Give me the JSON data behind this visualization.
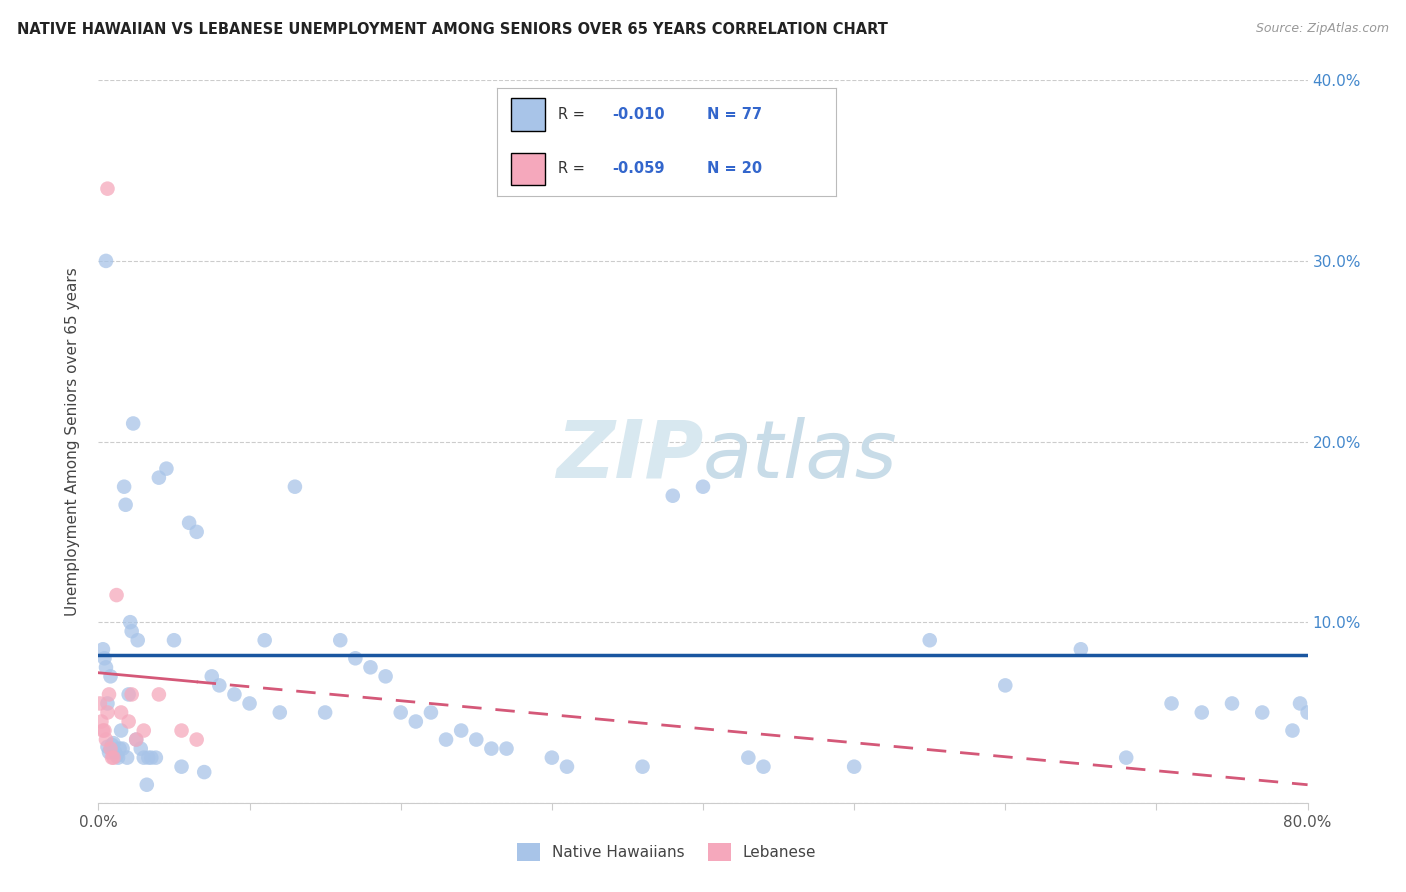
{
  "title": "NATIVE HAWAIIAN VS LEBANESE UNEMPLOYMENT AMONG SENIORS OVER 65 YEARS CORRELATION CHART",
  "source": "Source: ZipAtlas.com",
  "ylabel": "Unemployment Among Seniors over 65 years",
  "xlim": [
    0,
    0.8
  ],
  "ylim": [
    0,
    0.4
  ],
  "xtick_positions": [
    0.0,
    0.1,
    0.2,
    0.3,
    0.4,
    0.5,
    0.6,
    0.7,
    0.8
  ],
  "ytick_positions": [
    0.0,
    0.1,
    0.2,
    0.3,
    0.4
  ],
  "xtick_labels": [
    "0.0%",
    "",
    "",
    "",
    "",
    "",
    "",
    "",
    "80.0%"
  ],
  "ytick_labels_right": [
    "",
    "10.0%",
    "20.0%",
    "30.0%",
    "40.0%"
  ],
  "legend_r1": "R = -0.010",
  "legend_n1": "N = 77",
  "legend_r2": "R = -0.059",
  "legend_n2": "N = 20",
  "blue_color": "#a8c4e8",
  "pink_color": "#f5a8bc",
  "trend_blue_color": "#1a56a0",
  "trend_pink_color": "#d45878",
  "r_value_color": "#3366cc",
  "title_color": "#222222",
  "source_color": "#999999",
  "ylabel_color": "#444444",
  "tick_right_color": "#4488cc",
  "watermark_color": "#d8e8f0",
  "nh_x": [
    0.003,
    0.004,
    0.005,
    0.005,
    0.006,
    0.006,
    0.007,
    0.008,
    0.009,
    0.01,
    0.011,
    0.012,
    0.013,
    0.014,
    0.015,
    0.016,
    0.017,
    0.018,
    0.019,
    0.02,
    0.021,
    0.022,
    0.023,
    0.025,
    0.026,
    0.028,
    0.03,
    0.032,
    0.033,
    0.035,
    0.038,
    0.04,
    0.045,
    0.05,
    0.055,
    0.06,
    0.065,
    0.07,
    0.075,
    0.08,
    0.09,
    0.1,
    0.11,
    0.12,
    0.13,
    0.15,
    0.16,
    0.17,
    0.18,
    0.19,
    0.2,
    0.21,
    0.22,
    0.23,
    0.24,
    0.25,
    0.26,
    0.27,
    0.3,
    0.31,
    0.36,
    0.38,
    0.4,
    0.43,
    0.44,
    0.5,
    0.55,
    0.6,
    0.65,
    0.68,
    0.71,
    0.73,
    0.75,
    0.77,
    0.79,
    0.795,
    0.8
  ],
  "nh_y": [
    0.085,
    0.08,
    0.075,
    0.3,
    0.055,
    0.031,
    0.028,
    0.07,
    0.032,
    0.033,
    0.028,
    0.026,
    0.025,
    0.03,
    0.04,
    0.03,
    0.175,
    0.165,
    0.025,
    0.06,
    0.1,
    0.095,
    0.21,
    0.035,
    0.09,
    0.03,
    0.025,
    0.01,
    0.025,
    0.025,
    0.025,
    0.18,
    0.185,
    0.09,
    0.02,
    0.155,
    0.15,
    0.017,
    0.07,
    0.065,
    0.06,
    0.055,
    0.09,
    0.05,
    0.175,
    0.05,
    0.09,
    0.08,
    0.075,
    0.07,
    0.05,
    0.045,
    0.05,
    0.035,
    0.04,
    0.035,
    0.03,
    0.03,
    0.025,
    0.02,
    0.02,
    0.17,
    0.175,
    0.025,
    0.02,
    0.02,
    0.09,
    0.065,
    0.085,
    0.025,
    0.055,
    0.05,
    0.055,
    0.05,
    0.04,
    0.055,
    0.05
  ],
  "lb_x": [
    0.001,
    0.002,
    0.003,
    0.004,
    0.005,
    0.006,
    0.006,
    0.007,
    0.008,
    0.009,
    0.01,
    0.012,
    0.015,
    0.02,
    0.022,
    0.025,
    0.03,
    0.04,
    0.055,
    0.065
  ],
  "lb_y": [
    0.055,
    0.045,
    0.04,
    0.04,
    0.035,
    0.34,
    0.05,
    0.06,
    0.03,
    0.025,
    0.025,
    0.115,
    0.05,
    0.045,
    0.06,
    0.035,
    0.04,
    0.06,
    0.04,
    0.035
  ],
  "trend_blue_y_start": 0.082,
  "trend_blue_y_end": 0.082,
  "trend_pink_y_start": 0.072,
  "trend_pink_y_end": 0.01,
  "trend_solid_end_x": 0.065
}
